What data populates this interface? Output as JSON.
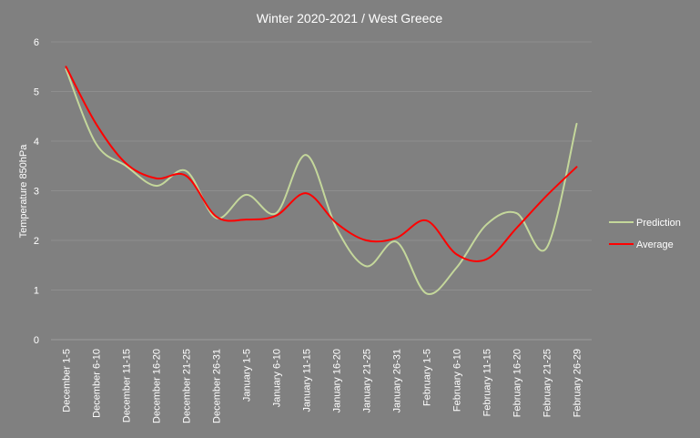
{
  "chart_data": {
    "type": "line",
    "title": "Winter 2020-2021 / West Greece",
    "xlabel": "",
    "ylabel": "Temperature 850hPa",
    "ylim": [
      0,
      6
    ],
    "yticks": [
      0,
      1,
      2,
      3,
      4,
      5,
      6
    ],
    "grid": true,
    "legend_position": "right",
    "smooth": true,
    "categories": [
      "December 1-5",
      "December 6-10",
      "December 11-15",
      "December 16-20",
      "December 21-25",
      "December 26-31",
      "January 1-5",
      "January 6-10",
      "January 11-15",
      "January 16-20",
      "January 21-25",
      "January 26-31",
      "February 1-5",
      "February 6-10",
      "February 11-15",
      "February 16-20",
      "February 21-25",
      "February 26-29"
    ],
    "series": [
      {
        "name": "Prediction",
        "color": "#c4d79b",
        "values": [
          5.45,
          3.95,
          3.5,
          3.1,
          3.4,
          2.45,
          2.92,
          2.55,
          3.72,
          2.25,
          1.48,
          1.97,
          0.93,
          1.45,
          2.32,
          2.55,
          1.85,
          4.35
        ]
      },
      {
        "name": "Average",
        "color": "#ff0000",
        "values": [
          5.5,
          4.35,
          3.55,
          3.25,
          3.3,
          2.48,
          2.42,
          2.5,
          2.95,
          2.35,
          2.0,
          2.05,
          2.4,
          1.72,
          1.62,
          2.25,
          2.9,
          3.48
        ]
      }
    ]
  }
}
